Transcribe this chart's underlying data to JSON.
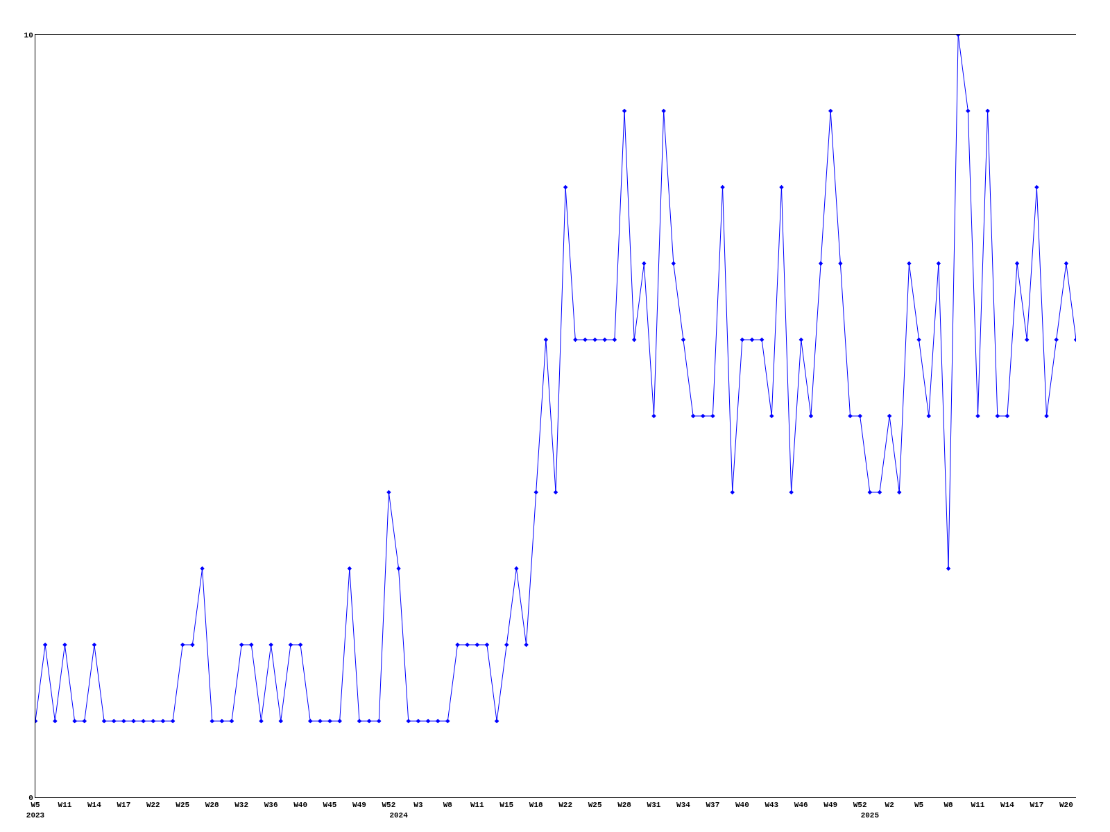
{
  "chart_data": {
    "type": "line",
    "categories": [
      "W5\n2023",
      null,
      null,
      "W11",
      null,
      null,
      "W14",
      null,
      null,
      "W17",
      null,
      null,
      "W22",
      null,
      null,
      "W25",
      null,
      null,
      "W28",
      null,
      null,
      "W32",
      null,
      null,
      "W36",
      null,
      null,
      "W40",
      null,
      null,
      "W45",
      null,
      null,
      "W49",
      null,
      null,
      "W52",
      "\n2024",
      null,
      "W3",
      null,
      null,
      "W8",
      null,
      null,
      "W11",
      null,
      null,
      "W15",
      null,
      null,
      "W18",
      null,
      null,
      "W22",
      null,
      null,
      "W25",
      null,
      null,
      "W28",
      null,
      null,
      "W31",
      null,
      null,
      "W34",
      null,
      null,
      "W37",
      null,
      null,
      "W40",
      null,
      null,
      "W43",
      null,
      null,
      "W46",
      null,
      null,
      "W49",
      null,
      null,
      "W52",
      "\n2025",
      null,
      "W2",
      null,
      null,
      "W5",
      null,
      null,
      "W8",
      null,
      null,
      "W11",
      null,
      null,
      "W14",
      null,
      null,
      "W17",
      null,
      null,
      "W20",
      null
    ],
    "series": [
      {
        "color": "#0000ff",
        "values": [
          1,
          2,
          1,
          2,
          1,
          1,
          2,
          1,
          1,
          1,
          1,
          1,
          1,
          1,
          1,
          2,
          2,
          3,
          1,
          1,
          1,
          2,
          2,
          1,
          2,
          1,
          2,
          2,
          1,
          1,
          1,
          1,
          3,
          1,
          1,
          1,
          4,
          3,
          1,
          1,
          1,
          1,
          1,
          2,
          2,
          2,
          2,
          1,
          2,
          3,
          2,
          4,
          6,
          4,
          8,
          6,
          6,
          6,
          6,
          6,
          9,
          6,
          7,
          5,
          9,
          7,
          6,
          5,
          5,
          5,
          8,
          4,
          6,
          6,
          6,
          5,
          8,
          4,
          6,
          5,
          7,
          9,
          7,
          5,
          5,
          4,
          4,
          5,
          4,
          7,
          6,
          5,
          7,
          3,
          10,
          9,
          5,
          9,
          5,
          5,
          7,
          6,
          8,
          5,
          6,
          7,
          6
        ]
      }
    ],
    "ylim": [
      0,
      10
    ],
    "yticks": [
      0,
      10
    ],
    "marker": "diamond",
    "line_style": "solid"
  }
}
